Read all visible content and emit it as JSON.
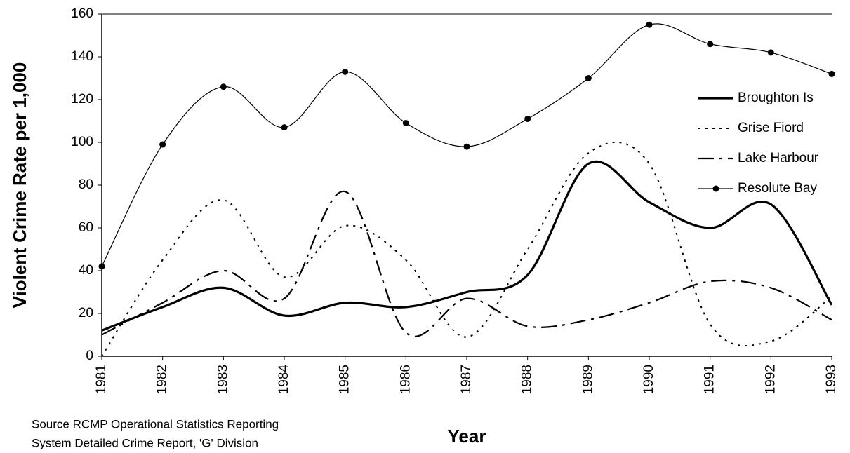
{
  "chart_data": {
    "type": "line",
    "y_label": "Violent Crime Rate per 1,000",
    "x_label": "Year",
    "source": [
      "Source  RCMP Operational Statistics Reporting",
      "System Detailed Crime Report, 'G' Division"
    ],
    "categories": [
      "1981",
      "1982",
      "1983",
      "1984",
      "1985",
      "1986",
      "1987",
      "1988",
      "1989",
      "1990",
      "1991",
      "1992",
      "1993"
    ],
    "series": [
      {
        "name": "Broughton Is",
        "color": "#000000",
        "line_style": "solid",
        "width": 3.2,
        "marker": false,
        "values": [
          12,
          23,
          32,
          19,
          25,
          23,
          30,
          38,
          90,
          72,
          60,
          71,
          24
        ]
      },
      {
        "name": "Grise Fiord",
        "color": "#000000",
        "line_style": "dotted",
        "width": 2,
        "marker": false,
        "values": [
          0,
          45,
          73,
          37,
          61,
          45,
          9,
          50,
          95,
          90,
          15,
          7,
          28
        ]
      },
      {
        "name": "Lake Harbour",
        "color": "#000000",
        "line_style": "dashdot",
        "width": 2.2,
        "marker": false,
        "values": [
          10,
          25,
          40,
          27,
          77,
          11,
          27,
          14,
          17,
          25,
          35,
          32,
          17
        ]
      },
      {
        "name": "Resolute Bay",
        "color": "#000000",
        "line_style": "solid",
        "width": 1.2,
        "marker": true,
        "values": [
          42,
          99,
          126,
          107,
          133,
          109,
          98,
          111,
          130,
          155,
          146,
          142,
          132
        ]
      }
    ],
    "ylim": [
      0,
      160
    ],
    "yticks": [
      0,
      20,
      40,
      60,
      80,
      100,
      120,
      140,
      160
    ],
    "legend": "right",
    "grid": false
  }
}
